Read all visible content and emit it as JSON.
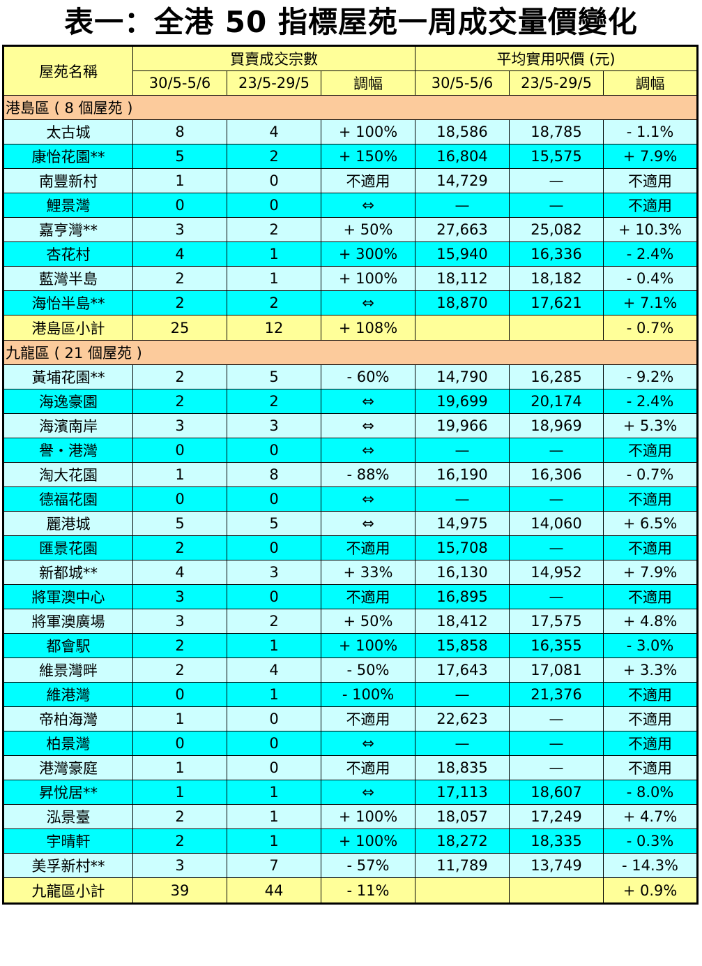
{
  "title": "表一：全港 50 指標屋苑一周成交量價變化",
  "header": {
    "estate_name": "屋苑名稱",
    "transactions_group": "買賣成交宗數",
    "price_group": "平均實用呎價 (元)",
    "period_current": "30/5-5/6",
    "period_previous": "23/5-29/5",
    "change": "調幅"
  },
  "regions": [
    {
      "name": "港島區 ( 8 個屋苑 )",
      "rows": [
        {
          "estate": "太古城",
          "cur": "8",
          "prev": "4",
          "chg": "+ 100%",
          "pcur": "18,586",
          "pprev": "18,785",
          "pchg": "- 1.1%"
        },
        {
          "estate": "康怡花園**",
          "cur": "5",
          "prev": "2",
          "chg": "+ 150%",
          "pcur": "16,804",
          "pprev": "15,575",
          "pchg": "+ 7.9%"
        },
        {
          "estate": "南豐新村",
          "cur": "1",
          "prev": "0",
          "chg": "不適用",
          "pcur": "14,729",
          "pprev": "—",
          "pchg": "不適用"
        },
        {
          "estate": "鯉景灣",
          "cur": "0",
          "prev": "0",
          "chg": "⇔",
          "pcur": "—",
          "pprev": "—",
          "pchg": "不適用"
        },
        {
          "estate": "嘉亨灣**",
          "cur": "3",
          "prev": "2",
          "chg": "+ 50%",
          "pcur": "27,663",
          "pprev": "25,082",
          "pchg": "+ 10.3%"
        },
        {
          "estate": "杏花村",
          "cur": "4",
          "prev": "1",
          "chg": "+ 300%",
          "pcur": "15,940",
          "pprev": "16,336",
          "pchg": "- 2.4%"
        },
        {
          "estate": "藍灣半島",
          "cur": "2",
          "prev": "1",
          "chg": "+ 100%",
          "pcur": "18,112",
          "pprev": "18,182",
          "pchg": "- 0.4%"
        },
        {
          "estate": "海怡半島**",
          "cur": "2",
          "prev": "2",
          "chg": "⇔",
          "pcur": "18,870",
          "pprev": "17,621",
          "pchg": "+ 7.1%"
        }
      ],
      "subtotal": {
        "label": "港島區小計",
        "cur": "25",
        "prev": "12",
        "chg": "+ 108%",
        "pcur": "",
        "pprev": "",
        "pchg": "- 0.7%"
      }
    },
    {
      "name": "九龍區 ( 21 個屋苑 )",
      "rows": [
        {
          "estate": "黃埔花園**",
          "cur": "2",
          "prev": "5",
          "chg": "- 60%",
          "pcur": "14,790",
          "pprev": "16,285",
          "pchg": "- 9.2%"
        },
        {
          "estate": "海逸豪園",
          "cur": "2",
          "prev": "2",
          "chg": "⇔",
          "pcur": "19,699",
          "pprev": "20,174",
          "pchg": "- 2.4%"
        },
        {
          "estate": "海濱南岸",
          "cur": "3",
          "prev": "3",
          "chg": "⇔",
          "pcur": "19,966",
          "pprev": "18,969",
          "pchg": "+ 5.3%"
        },
        {
          "estate": "譽・港灣",
          "cur": "0",
          "prev": "0",
          "chg": "⇔",
          "pcur": "—",
          "pprev": "—",
          "pchg": "不適用"
        },
        {
          "estate": "淘大花園",
          "cur": "1",
          "prev": "8",
          "chg": "- 88%",
          "pcur": "16,190",
          "pprev": "16,306",
          "pchg": "- 0.7%"
        },
        {
          "estate": "德福花園",
          "cur": "0",
          "prev": "0",
          "chg": "⇔",
          "pcur": "—",
          "pprev": "—",
          "pchg": "不適用"
        },
        {
          "estate": "麗港城",
          "cur": "5",
          "prev": "5",
          "chg": "⇔",
          "pcur": "14,975",
          "pprev": "14,060",
          "pchg": "+ 6.5%"
        },
        {
          "estate": "匯景花園",
          "cur": "2",
          "prev": "0",
          "chg": "不適用",
          "pcur": "15,708",
          "pprev": "—",
          "pchg": "不適用"
        },
        {
          "estate": "新都城**",
          "cur": "4",
          "prev": "3",
          "chg": "+ 33%",
          "pcur": "16,130",
          "pprev": "14,952",
          "pchg": "+ 7.9%"
        },
        {
          "estate": "將軍澳中心",
          "cur": "3",
          "prev": "0",
          "chg": "不適用",
          "pcur": "16,895",
          "pprev": "—",
          "pchg": "不適用"
        },
        {
          "estate": "將軍澳廣場",
          "cur": "3",
          "prev": "2",
          "chg": "+ 50%",
          "pcur": "18,412",
          "pprev": "17,575",
          "pchg": "+ 4.8%"
        },
        {
          "estate": "都會駅",
          "cur": "2",
          "prev": "1",
          "chg": "+ 100%",
          "pcur": "15,858",
          "pprev": "16,355",
          "pchg": "- 3.0%"
        },
        {
          "estate": "維景灣畔",
          "cur": "2",
          "prev": "4",
          "chg": "- 50%",
          "pcur": "17,643",
          "pprev": "17,081",
          "pchg": "+ 3.3%"
        },
        {
          "estate": "維港灣",
          "cur": "0",
          "prev": "1",
          "chg": "- 100%",
          "pcur": "—",
          "pprev": "21,376",
          "pchg": "不適用"
        },
        {
          "estate": "帝柏海灣",
          "cur": "1",
          "prev": "0",
          "chg": "不適用",
          "pcur": "22,623",
          "pprev": "—",
          "pchg": "不適用"
        },
        {
          "estate": "柏景灣",
          "cur": "0",
          "prev": "0",
          "chg": "⇔",
          "pcur": "—",
          "pprev": "—",
          "pchg": "不適用"
        },
        {
          "estate": "港灣豪庭",
          "cur": "1",
          "prev": "0",
          "chg": "不適用",
          "pcur": "18,835",
          "pprev": "—",
          "pchg": "不適用"
        },
        {
          "estate": "昇悅居**",
          "cur": "1",
          "prev": "1",
          "chg": "⇔",
          "pcur": "17,113",
          "pprev": "18,607",
          "pchg": "- 8.0%"
        },
        {
          "estate": "泓景臺",
          "cur": "2",
          "prev": "1",
          "chg": "+ 100%",
          "pcur": "18,057",
          "pprev": "17,249",
          "pchg": "+ 4.7%"
        },
        {
          "estate": "宇晴軒",
          "cur": "2",
          "prev": "1",
          "chg": "+ 100%",
          "pcur": "18,272",
          "pprev": "18,335",
          "pchg": "- 0.3%"
        },
        {
          "estate": "美孚新村**",
          "cur": "3",
          "prev": "7",
          "chg": "- 57%",
          "pcur": "11,789",
          "pprev": "13,749",
          "pchg": "- 14.3%"
        }
      ],
      "subtotal": {
        "label": "九龍區小計",
        "cur": "39",
        "prev": "44",
        "chg": "- 11%",
        "pcur": "",
        "pprev": "",
        "pchg": "+ 0.9%"
      }
    }
  ],
  "colors": {
    "header_bg": "#ffff99",
    "region_bg": "#fccb9c",
    "row_light": "#ccffff",
    "row_dark": "#00ffff",
    "subtotal_bg": "#ffff99"
  }
}
